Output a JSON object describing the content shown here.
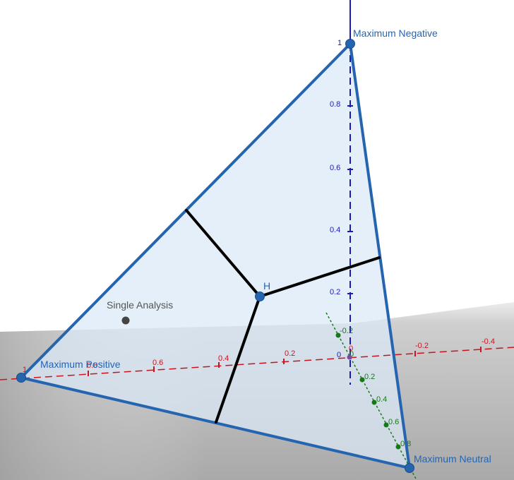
{
  "vertices": {
    "negative": "Maximum Negative",
    "positive": "Maximum Positive",
    "neutral": "Maximum Neutral"
  },
  "points": {
    "h": "H",
    "single": "Single Analysis"
  },
  "axes": {
    "z": {
      "color": "#1a1ab4",
      "ticks": [
        "1",
        "0.8",
        "0.6",
        "0.4",
        "0.2",
        "0"
      ]
    },
    "x": {
      "color": "#c8141e",
      "ticks": [
        "1",
        "0.8",
        "0.6",
        "0.4",
        "0.2",
        "0",
        "-0.2",
        "-0.4"
      ]
    },
    "y": {
      "color": "#167816",
      "ticks": [
        "-0.2",
        "0",
        "0.2",
        "0.4",
        "0.6",
        "0.8"
      ]
    }
  },
  "colors": {
    "triangle_edge": "#2565b0",
    "triangle_fill": "#dbe9f7",
    "bisector": "#000000",
    "ground": "#b8b8b8"
  }
}
